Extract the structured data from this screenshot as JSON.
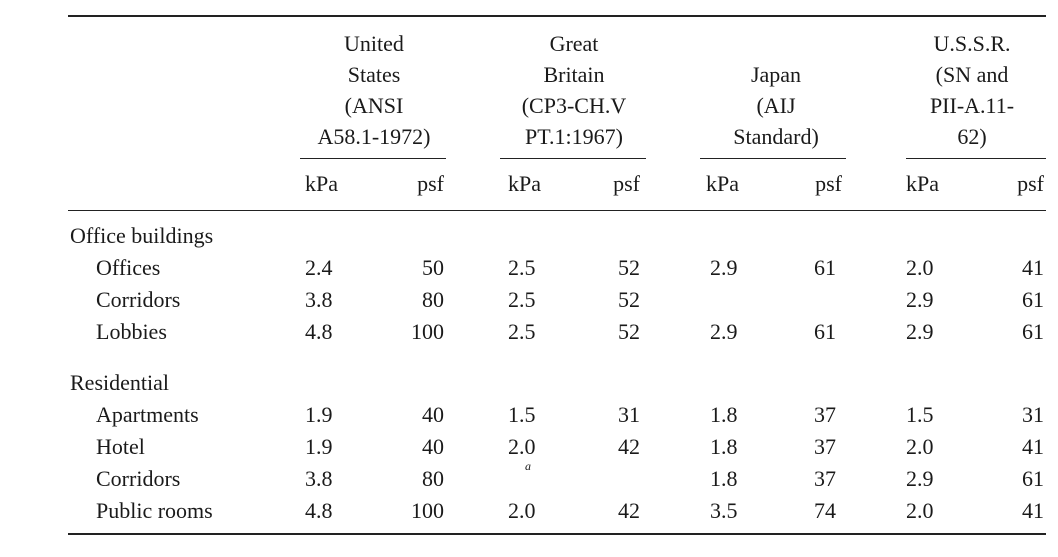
{
  "countries": [
    {
      "name_lines": [
        "United",
        "States",
        "(ANSI",
        "A58.1-1972)"
      ]
    },
    {
      "name_lines": [
        "Great",
        "Britain",
        "(CP3-CH.V",
        "PT.1:1967)"
      ]
    },
    {
      "name_lines": [
        "Japan",
        "(AIJ",
        "Standard)"
      ]
    },
    {
      "name_lines": [
        "U.S.S.R.",
        "(SN and",
        "PII-A.11-",
        "62)"
      ]
    }
  ],
  "units": {
    "kpa": "kPa",
    "psf": "psf"
  },
  "footnote_mark": "a",
  "sections": [
    {
      "title": "Office buildings",
      "rows": [
        {
          "label": "Offices",
          "values": [
            "2.4",
            "50",
            "2.5",
            "52",
            "2.9",
            "61",
            "2.0",
            "41"
          ]
        },
        {
          "label": "Corridors",
          "values": [
            "3.8",
            "80",
            "2.5",
            "52",
            "",
            "",
            "2.9",
            "61"
          ]
        },
        {
          "label": "Lobbies",
          "values": [
            "4.8",
            "100",
            "2.5",
            "52",
            "2.9",
            "61",
            "2.9",
            "61"
          ]
        }
      ]
    },
    {
      "title": "Residential",
      "rows": [
        {
          "label": "Apartments",
          "values": [
            "1.9",
            "40",
            "1.5",
            "31",
            "1.8",
            "37",
            "1.5",
            "31"
          ]
        },
        {
          "label": "Hotel",
          "values": [
            "1.9",
            "40",
            "2.0",
            "42",
            "1.8",
            "37",
            "2.0",
            "41"
          ]
        },
        {
          "label": "Corridors",
          "values": [
            "3.8",
            "80",
            "",
            "",
            "1.8",
            "37",
            "2.9",
            "61"
          ]
        },
        {
          "label": "Public rooms",
          "values": [
            "4.8",
            "100",
            "2.0",
            "42",
            "3.5",
            "74",
            "2.0",
            "41"
          ]
        }
      ]
    }
  ]
}
